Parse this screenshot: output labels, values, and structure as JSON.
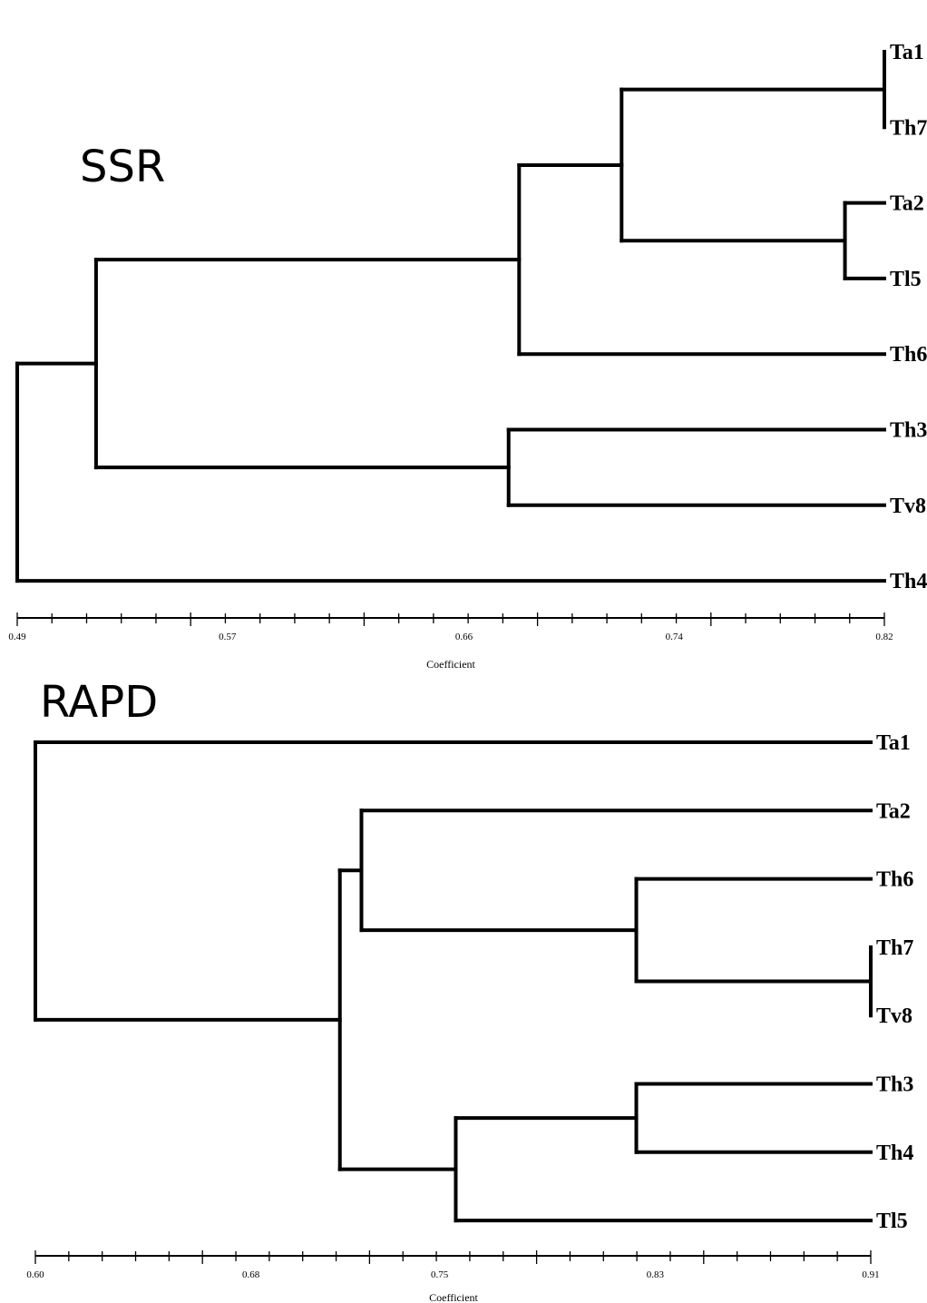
{
  "panels": [
    {
      "title": "SSR",
      "axis": {
        "label": "Coefficient",
        "min": 0.49,
        "max": 0.82,
        "ticks": [
          "0.49",
          "0.57",
          "0.66",
          "0.74",
          "0.82"
        ]
      },
      "leaves": [
        "Ta1",
        "Th7",
        "Ta2",
        "Tl5",
        "Th6",
        "Th3",
        "Tv8",
        "Th4"
      ],
      "tree": {
        "h": 0.49,
        "children": [
          {
            "h": 0.52,
            "children": [
              {
                "h": 0.681,
                "children": [
                  {
                    "h": 0.72,
                    "children": [
                      {
                        "h": 0.82,
                        "children": [
                          "Ta1",
                          "Th7"
                        ]
                      },
                      {
                        "h": 0.805,
                        "children": [
                          "Ta2",
                          "Tl5"
                        ]
                      }
                    ]
                  },
                  "Th6"
                ]
              },
              {
                "h": 0.677,
                "children": [
                  "Th3",
                  "Tv8"
                ]
              }
            ]
          },
          "Th4"
        ]
      }
    },
    {
      "title": "RAPD",
      "axis": {
        "label": "Coefficient",
        "min": 0.6,
        "max": 0.91,
        "ticks": [
          "0.60",
          "0.68",
          "0.75",
          "0.83",
          "0.91"
        ]
      },
      "leaves": [
        "Ta1",
        "Ta2",
        "Th6",
        "Th7",
        "Tv8",
        "Th3",
        "Th4",
        "Tl5"
      ],
      "tree": {
        "h": 0.6,
        "children": [
          "Ta1",
          {
            "h": 0.713,
            "children": [
              {
                "h": 0.721,
                "children": [
                  "Ta2",
                  {
                    "h": 0.823,
                    "children": [
                      "Th6",
                      {
                        "h": 0.91,
                        "children": [
                          "Th7",
                          "Tv8"
                        ]
                      }
                    ]
                  }
                ]
              },
              {
                "h": 0.756,
                "children": [
                  {
                    "h": 0.823,
                    "children": [
                      "Th3",
                      "Th4"
                    ]
                  },
                  "Tl5"
                ]
              }
            ]
          }
        ]
      }
    }
  ]
}
